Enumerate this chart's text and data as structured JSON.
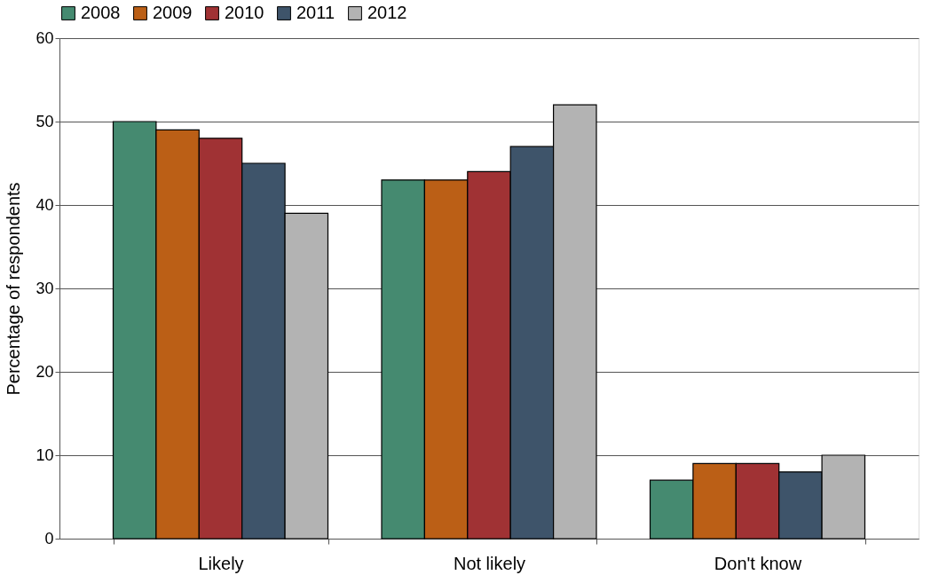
{
  "chart_data": {
    "type": "bar",
    "ylabel": "Percentage of respondents",
    "categories": [
      "Likely",
      "Not likely",
      "Don't know"
    ],
    "series": [
      {
        "name": "2008",
        "color": "#458a70",
        "values": [
          50,
          43,
          7
        ]
      },
      {
        "name": "2009",
        "color": "#bb5f16",
        "values": [
          49,
          43,
          9
        ]
      },
      {
        "name": "2010",
        "color": "#a03234",
        "values": [
          48,
          44,
          9
        ]
      },
      {
        "name": "2011",
        "color": "#3e546a",
        "values": [
          45,
          47,
          8
        ]
      },
      {
        "name": "2012",
        "color": "#b3b3b3",
        "values": [
          39,
          52,
          10
        ]
      }
    ],
    "ylim": [
      0,
      60
    ],
    "yticks": [
      0,
      10,
      20,
      30,
      40,
      50,
      60
    ],
    "grid": "y",
    "legend": "top"
  }
}
